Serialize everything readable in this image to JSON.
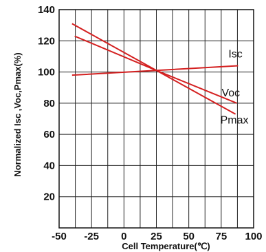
{
  "chart_data": {
    "type": "line",
    "xlabel": "Cell Temperature(℃)",
    "ylabel": "Normalized Isc ,Voc,Pmax(%)",
    "xlim": [
      -50,
      100
    ],
    "ylim": [
      0,
      140
    ],
    "xticks": [
      -50,
      -25,
      0,
      25,
      50,
      75,
      100
    ],
    "xtick_labels": [
      "-50",
      "-25",
      "0",
      "25",
      "50",
      "75",
      "100"
    ],
    "yticks": [
      20,
      40,
      60,
      80,
      100,
      120,
      140
    ],
    "ytick_labels": [
      "20",
      "40",
      "60",
      "80",
      "100",
      "120",
      "140"
    ],
    "grid": true,
    "series": [
      {
        "name": "Isc",
        "x": [
          -40,
          25,
          88
        ],
        "y": [
          98,
          101,
          104
        ],
        "color": "#d42020"
      },
      {
        "name": "Voc",
        "x": [
          -38,
          25,
          87
        ],
        "y": [
          123,
          101,
          80
        ],
        "color": "#d42020"
      },
      {
        "name": "Pmax",
        "x": [
          -40,
          25,
          86
        ],
        "y": [
          131,
          101,
          73
        ],
        "color": "#d42020"
      }
    ]
  }
}
